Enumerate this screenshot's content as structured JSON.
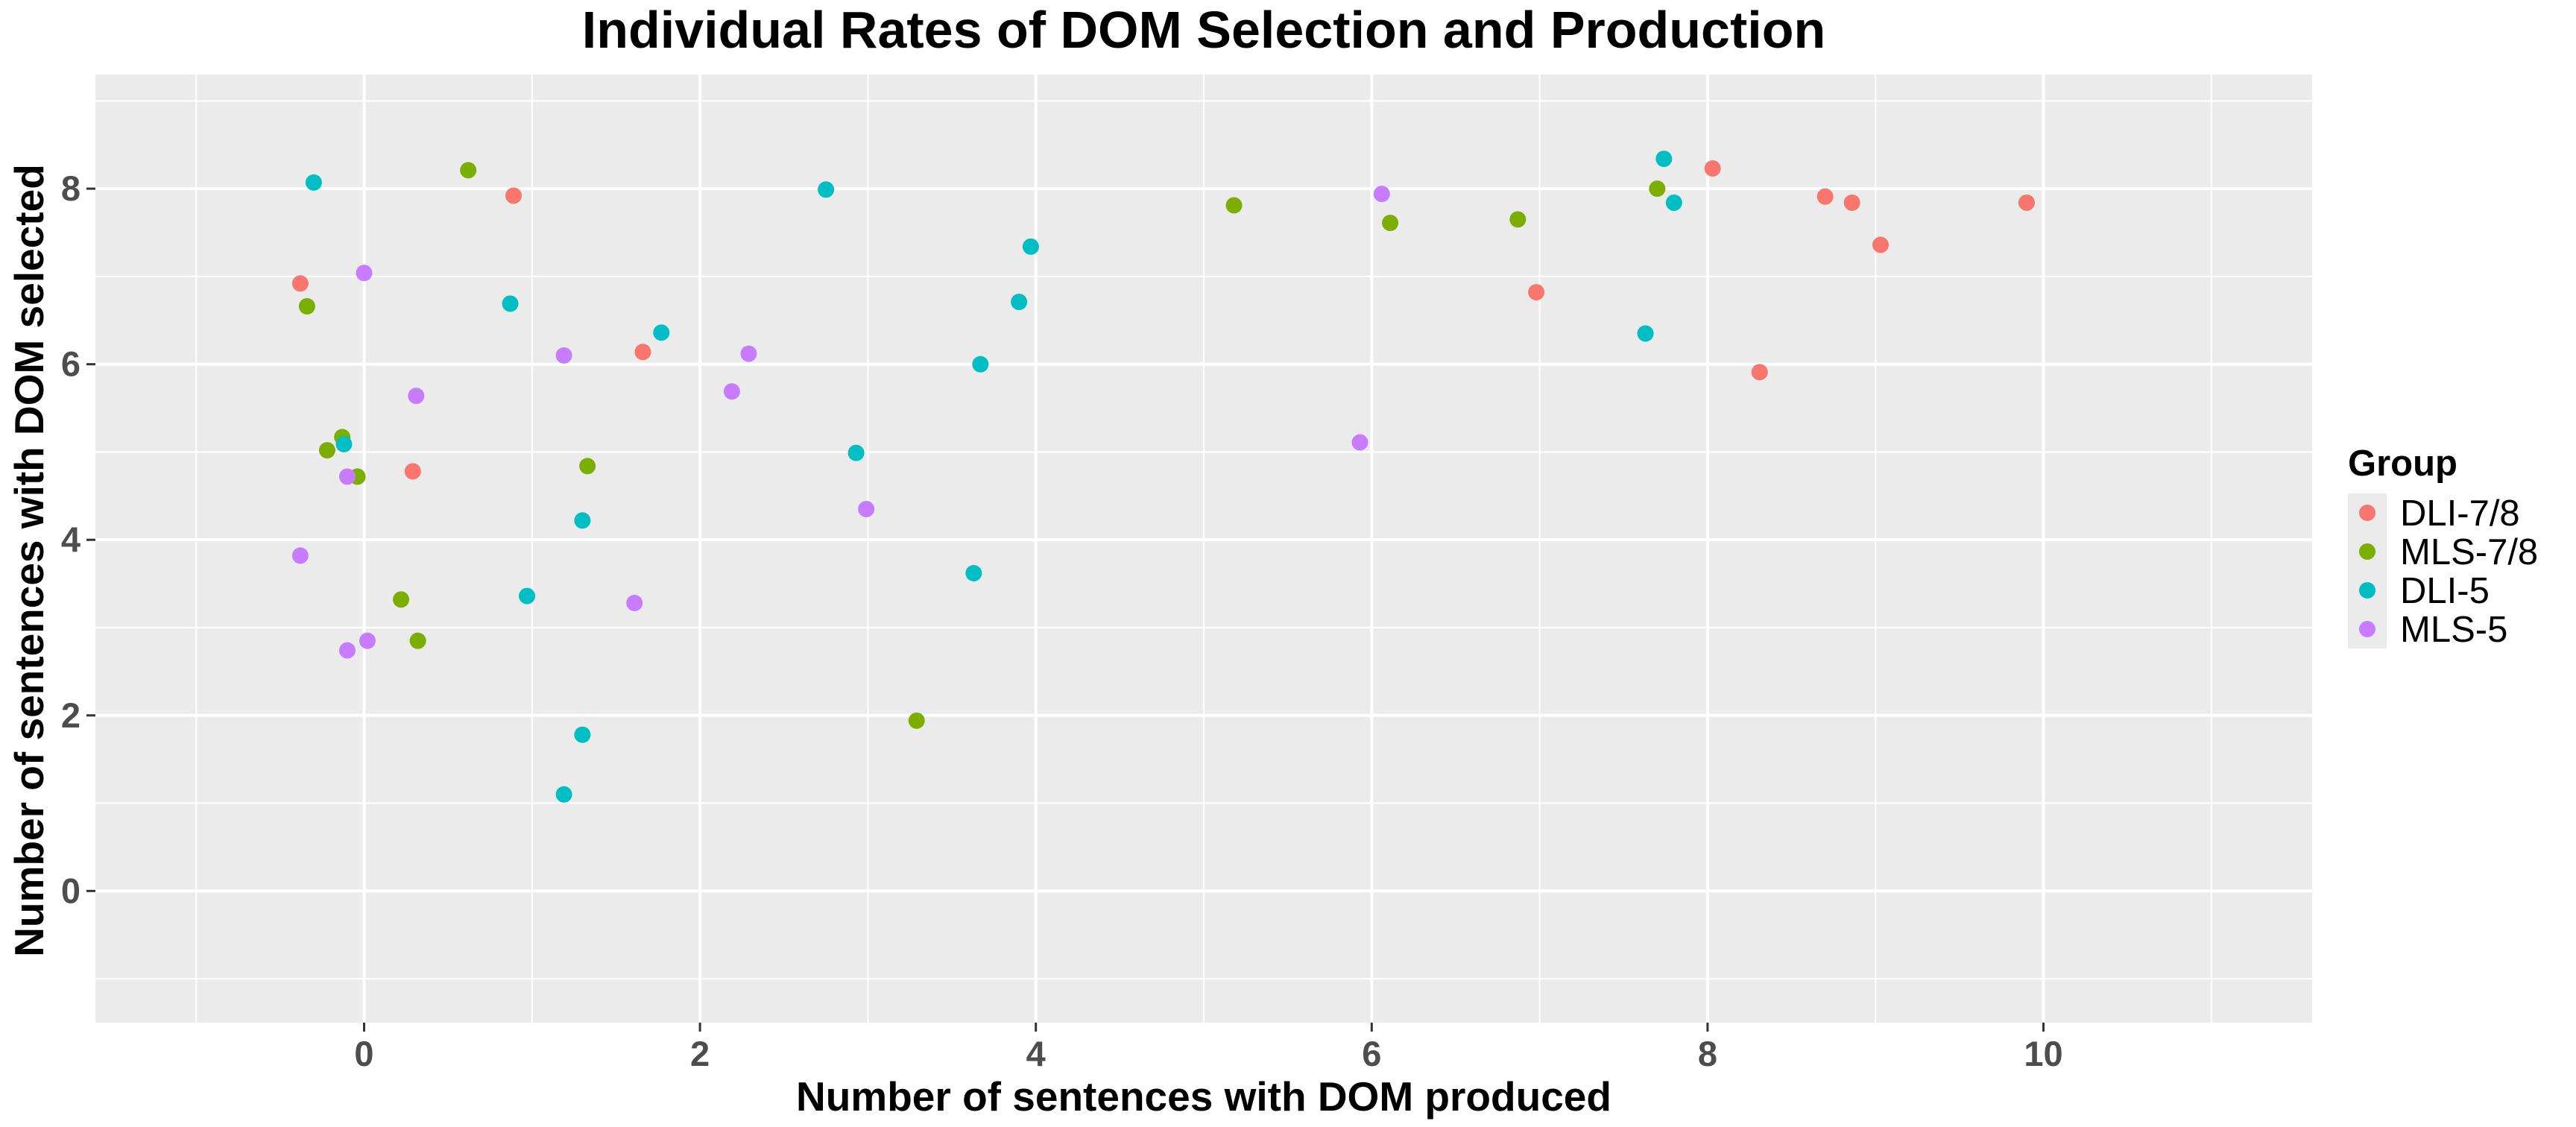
{
  "chart_data": {
    "type": "scatter",
    "title": "Individual Rates of DOM Selection and Production",
    "xlabel": "Number of sentences with DOM produced",
    "ylabel": "Number of sentences with DOM selected",
    "xlim": [
      -1.6,
      11.6
    ],
    "ylim": [
      -1.5,
      9.3
    ],
    "x_ticks": [
      0,
      2,
      4,
      6,
      8,
      10
    ],
    "y_ticks": [
      0,
      2,
      4,
      6,
      8
    ],
    "grid": true,
    "legend": {
      "title": "Group",
      "position": "right"
    },
    "series": [
      {
        "name": "DLI-7/8",
        "color": "#F8766D",
        "points": [
          {
            "x": -0.38,
            "y": 6.92
          },
          {
            "x": 0.29,
            "y": 4.78
          },
          {
            "x": 0.89,
            "y": 7.92
          },
          {
            "x": 1.66,
            "y": 6.14
          },
          {
            "x": 6.98,
            "y": 6.82
          },
          {
            "x": 8.03,
            "y": 8.23
          },
          {
            "x": 8.31,
            "y": 5.91
          },
          {
            "x": 8.7,
            "y": 7.91
          },
          {
            "x": 8.86,
            "y": 7.84
          },
          {
            "x": 9.03,
            "y": 7.36
          },
          {
            "x": 9.9,
            "y": 7.84
          }
        ]
      },
      {
        "name": "MLS-7/8",
        "color": "#7CAE00",
        "points": [
          {
            "x": -0.34,
            "y": 6.66
          },
          {
            "x": -0.22,
            "y": 5.02
          },
          {
            "x": -0.13,
            "y": 5.17
          },
          {
            "x": -0.04,
            "y": 4.72
          },
          {
            "x": 0.22,
            "y": 3.32
          },
          {
            "x": 0.32,
            "y": 2.85
          },
          {
            "x": 0.62,
            "y": 8.21
          },
          {
            "x": 1.33,
            "y": 4.84
          },
          {
            "x": 3.29,
            "y": 1.94
          },
          {
            "x": 5.18,
            "y": 7.81
          },
          {
            "x": 6.11,
            "y": 7.61
          },
          {
            "x": 6.87,
            "y": 7.65
          },
          {
            "x": 7.7,
            "y": 8.0
          }
        ]
      },
      {
        "name": "DLI-5",
        "color": "#00BFC4",
        "points": [
          {
            "x": -0.3,
            "y": 8.07
          },
          {
            "x": -0.12,
            "y": 5.09
          },
          {
            "x": 0.87,
            "y": 6.69
          },
          {
            "x": 0.97,
            "y": 3.36
          },
          {
            "x": 1.19,
            "y": 1.1
          },
          {
            "x": 1.3,
            "y": 4.22
          },
          {
            "x": 1.3,
            "y": 1.78
          },
          {
            "x": 1.77,
            "y": 6.36
          },
          {
            "x": 2.75,
            "y": 7.99
          },
          {
            "x": 2.93,
            "y": 4.99
          },
          {
            "x": 3.63,
            "y": 3.62
          },
          {
            "x": 3.67,
            "y": 6.0
          },
          {
            "x": 3.9,
            "y": 6.71
          },
          {
            "x": 3.97,
            "y": 7.34
          },
          {
            "x": 7.63,
            "y": 6.35
          },
          {
            "x": 7.74,
            "y": 8.34
          },
          {
            "x": 7.8,
            "y": 7.84
          }
        ]
      },
      {
        "name": "MLS-5",
        "color": "#C77CFF",
        "points": [
          {
            "x": -0.38,
            "y": 3.82
          },
          {
            "x": -0.1,
            "y": 4.72
          },
          {
            "x": -0.1,
            "y": 2.74
          },
          {
            "x": 0.0,
            "y": 7.04
          },
          {
            "x": 0.02,
            "y": 2.85
          },
          {
            "x": 0.31,
            "y": 5.64
          },
          {
            "x": 1.19,
            "y": 6.1
          },
          {
            "x": 1.61,
            "y": 3.28
          },
          {
            "x": 2.19,
            "y": 5.69
          },
          {
            "x": 2.29,
            "y": 6.12
          },
          {
            "x": 2.99,
            "y": 4.35
          },
          {
            "x": 5.93,
            "y": 5.11
          },
          {
            "x": 6.06,
            "y": 7.94
          }
        ]
      }
    ]
  }
}
